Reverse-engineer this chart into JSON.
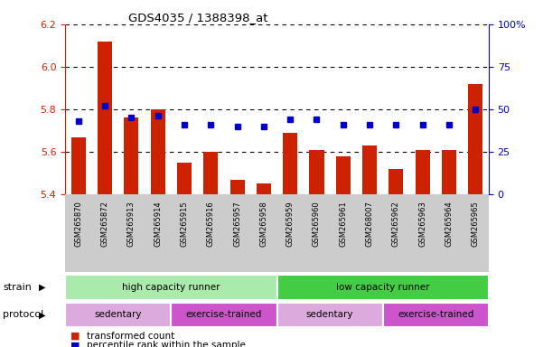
{
  "title": "GDS4035 / 1388398_at",
  "samples": [
    "GSM265870",
    "GSM265872",
    "GSM265913",
    "GSM265914",
    "GSM265915",
    "GSM265916",
    "GSM265957",
    "GSM265958",
    "GSM265959",
    "GSM265960",
    "GSM265961",
    "GSM268007",
    "GSM265962",
    "GSM265963",
    "GSM265964",
    "GSM265965"
  ],
  "transformed_counts": [
    5.67,
    6.12,
    5.76,
    5.8,
    5.55,
    5.6,
    5.47,
    5.45,
    5.69,
    5.61,
    5.58,
    5.63,
    5.52,
    5.61,
    5.61,
    5.92
  ],
  "percentile_ranks": [
    43,
    52,
    45,
    46,
    41,
    41,
    40,
    40,
    44,
    44,
    41,
    41,
    41,
    41,
    41,
    50
  ],
  "ylim_left": [
    5.4,
    6.2
  ],
  "ylim_right": [
    0,
    100
  ],
  "yticks_left": [
    5.4,
    5.6,
    5.8,
    6.0,
    6.2
  ],
  "yticks_right": [
    0,
    25,
    50,
    75,
    100
  ],
  "bar_color": "#cc2200",
  "dot_color": "#0000cc",
  "strain_groups": [
    {
      "label": "high capacity runner",
      "start": 0,
      "end": 8,
      "color": "#aaeaaa"
    },
    {
      "label": "low capacity runner",
      "start": 8,
      "end": 16,
      "color": "#44cc44"
    }
  ],
  "protocol_groups": [
    {
      "label": "sedentary",
      "start": 0,
      "end": 4,
      "color": "#ddaadd"
    },
    {
      "label": "exercise-trained",
      "start": 4,
      "end": 8,
      "color": "#cc55cc"
    },
    {
      "label": "sedentary",
      "start": 8,
      "end": 12,
      "color": "#ddaadd"
    },
    {
      "label": "exercise-trained",
      "start": 12,
      "end": 16,
      "color": "#cc55cc"
    }
  ],
  "legend_items": [
    {
      "label": "transformed count",
      "color": "#cc2200"
    },
    {
      "label": "percentile rank within the sample",
      "color": "#0000cc"
    }
  ],
  "tick_color_left": "#cc2200",
  "tick_color_right": "#0000cc",
  "label_bg_color": "#cccccc"
}
